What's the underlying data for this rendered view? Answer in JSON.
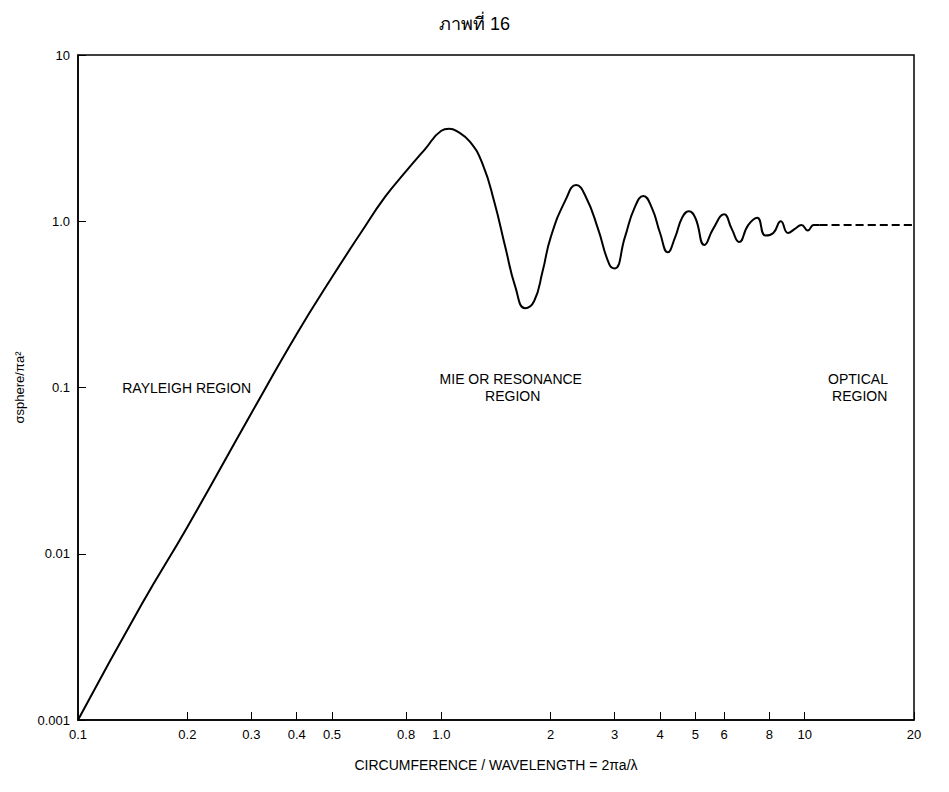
{
  "chart_data": {
    "type": "line",
    "title": "ภาพที่ 16",
    "x_label": "CIRCUMFERENCE / WAVELENGTH = 2πa/λ",
    "y_label": "σsphere/πa²",
    "log": true,
    "grid": false,
    "xlim": [
      0.1,
      20
    ],
    "xticks": [
      0.1,
      0.2,
      0.3,
      0.4,
      0.5,
      0.8,
      {
        "value": 1,
        "label": "1.0"
      },
      2,
      3,
      4,
      5,
      6,
      8,
      10,
      20
    ],
    "ylim": [
      0.001,
      10
    ],
    "yticks": [
      0.001,
      0.01,
      0.1,
      {
        "value": 1,
        "label": "1.0"
      },
      10
    ],
    "annotations": [
      "RAYLEIGH REGION",
      "MIE OR RESONANCE REGION",
      "OPTICAL REGION"
    ],
    "series": [
      {
        "color": "#000000",
        "line_style": "solid",
        "x": [
          0.1,
          0.15,
          0.2,
          0.3,
          0.4,
          0.5,
          0.6,
          0.7,
          0.8,
          0.9,
          1.0,
          1.05,
          1.1,
          1.2,
          1.3,
          1.4,
          1.5,
          1.6,
          1.7,
          1.8,
          1.9,
          2.0,
          2.2,
          2.35,
          2.5,
          2.7,
          2.9,
          3.0,
          3.2,
          3.4,
          3.6,
          3.8,
          4.0,
          4.2,
          4.4,
          4.6,
          4.8,
          5.0,
          5.3,
          5.6,
          6.0,
          6.3,
          6.6,
          7.0,
          7.4,
          7.8,
          8.2,
          8.6,
          9.0,
          9.4,
          9.8,
          10.2,
          10.6,
          11
        ],
        "values": [
          0.001,
          0.005,
          0.0145,
          0.07,
          0.21,
          0.46,
          0.85,
          1.4,
          2.0,
          2.7,
          3.5,
          3.6,
          3.5,
          3.0,
          2.2,
          1.3,
          0.7,
          0.4,
          0.3,
          0.33,
          0.5,
          0.8,
          1.35,
          1.65,
          1.4,
          0.9,
          0.55,
          0.52,
          0.8,
          1.2,
          1.42,
          1.2,
          0.85,
          0.65,
          0.8,
          1.05,
          1.15,
          1.05,
          0.72,
          0.9,
          1.1,
          0.9,
          0.75,
          0.95,
          1.05,
          0.82,
          0.85,
          1.0,
          0.85,
          0.9,
          0.95,
          0.88,
          0.95,
          0.95
        ]
      },
      {
        "color": "#000000",
        "line_style": "dashed",
        "x": [
          11,
          20
        ],
        "values": [
          0.95,
          0.95
        ]
      }
    ]
  }
}
